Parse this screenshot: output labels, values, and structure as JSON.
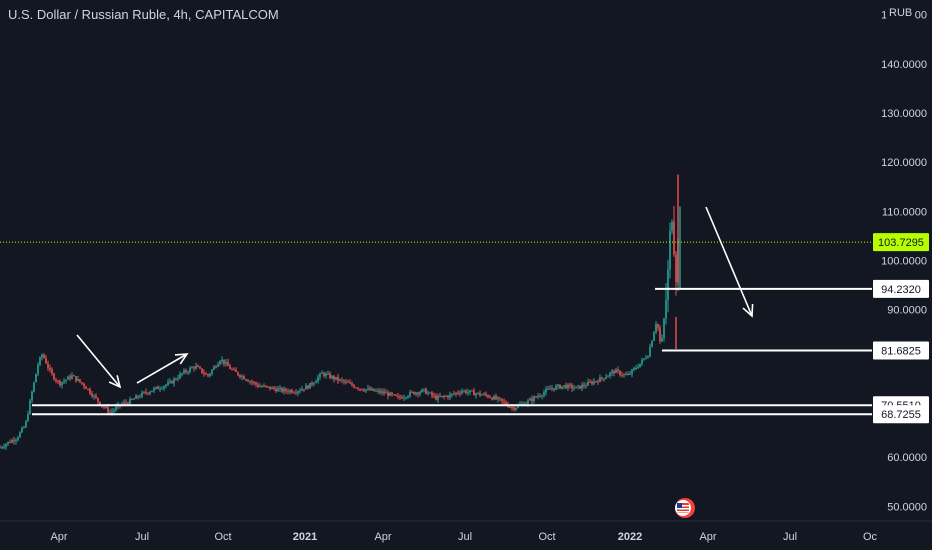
{
  "header": {
    "title": "U.S. Dollar / Russian Ruble, 4h, CAPITALCOM",
    "currency": "RUB"
  },
  "colors": {
    "background": "#131722",
    "up": "#26a69a",
    "down": "#ef5350",
    "text": "#d1d4dc",
    "drawing": "#ffffff",
    "current_price": "#b6ff00"
  },
  "chart_data": {
    "type": "candlestick",
    "symbol": "USDRUB",
    "timeframe": "4h",
    "source": "CAPITALCOM",
    "y_ticks": [
      "150.0000",
      "140.0000",
      "130.0000",
      "120.0000",
      "110.0000",
      "100.0000",
      "90.0000",
      "60.0000",
      "50.0000"
    ],
    "ylim": [
      47,
      153
    ],
    "x_ticks": [
      {
        "label": "Apr",
        "bold": false
      },
      {
        "label": "Jul",
        "bold": false
      },
      {
        "label": "Oct",
        "bold": false
      },
      {
        "label": "2021",
        "bold": true
      },
      {
        "label": "Apr",
        "bold": false
      },
      {
        "label": "Jul",
        "bold": false
      },
      {
        "label": "Oct",
        "bold": false
      },
      {
        "label": "2022",
        "bold": true
      },
      {
        "label": "Apr",
        "bold": false
      },
      {
        "label": "Jul",
        "bold": false
      },
      {
        "label": "Oc",
        "bold": false
      }
    ],
    "current_price": {
      "value": 103.7295,
      "label": "103.7295"
    },
    "levels": [
      {
        "value": 94.232,
        "label": "94.2320"
      },
      {
        "value": 81.6825,
        "label": "81.6825"
      },
      {
        "value": 70.551,
        "label": "70.5510"
      },
      {
        "value": 68.7255,
        "label": "68.7255"
      }
    ],
    "price_path": [
      {
        "t": 0.0,
        "p": 62.0
      },
      {
        "t": 0.04,
        "p": 64.0
      },
      {
        "t": 0.06,
        "p": 66.5
      },
      {
        "t": 0.075,
        "p": 73.0
      },
      {
        "t": 0.09,
        "p": 79.0
      },
      {
        "t": 0.1,
        "p": 81.0
      },
      {
        "t": 0.12,
        "p": 77.0
      },
      {
        "t": 0.14,
        "p": 75.0
      },
      {
        "t": 0.17,
        "p": 76.5
      },
      {
        "t": 0.2,
        "p": 74.5
      },
      {
        "t": 0.23,
        "p": 71.5
      },
      {
        "t": 0.26,
        "p": 69.0
      },
      {
        "t": 0.28,
        "p": 70.5
      },
      {
        "t": 0.31,
        "p": 71.5
      },
      {
        "t": 0.34,
        "p": 73.0
      },
      {
        "t": 0.37,
        "p": 74.0
      },
      {
        "t": 0.4,
        "p": 75.0
      },
      {
        "t": 0.43,
        "p": 77.0
      },
      {
        "t": 0.46,
        "p": 78.5
      },
      {
        "t": 0.49,
        "p": 76.5
      },
      {
        "t": 0.52,
        "p": 80.0
      },
      {
        "t": 0.55,
        "p": 77.5
      },
      {
        "t": 0.58,
        "p": 76.0
      },
      {
        "t": 0.61,
        "p": 74.5
      },
      {
        "t": 0.64,
        "p": 74.0
      },
      {
        "t": 0.67,
        "p": 73.5
      },
      {
        "t": 0.7,
        "p": 73.5
      },
      {
        "t": 0.73,
        "p": 74.5
      },
      {
        "t": 0.76,
        "p": 77.0
      },
      {
        "t": 0.79,
        "p": 76.0
      },
      {
        "t": 0.82,
        "p": 75.0
      },
      {
        "t": 0.85,
        "p": 74.0
      },
      {
        "t": 0.88,
        "p": 73.5
      },
      {
        "t": 0.91,
        "p": 73.0
      },
      {
        "t": 0.94,
        "p": 72.0
      },
      {
        "t": 0.97,
        "p": 73.0
      },
      {
        "t": 1.0,
        "p": 73.5
      },
      {
        "t": 1.03,
        "p": 72.0
      },
      {
        "t": 1.06,
        "p": 72.5
      },
      {
        "t": 1.09,
        "p": 73.5
      },
      {
        "t": 1.12,
        "p": 73.0
      },
      {
        "t": 1.15,
        "p": 72.5
      },
      {
        "t": 1.18,
        "p": 71.5
      },
      {
        "t": 1.21,
        "p": 70.0
      },
      {
        "t": 1.24,
        "p": 71.0
      },
      {
        "t": 1.27,
        "p": 72.5
      },
      {
        "t": 1.3,
        "p": 74.0
      },
      {
        "t": 1.33,
        "p": 74.5
      },
      {
        "t": 1.36,
        "p": 74.0
      },
      {
        "t": 1.39,
        "p": 75.0
      },
      {
        "t": 1.42,
        "p": 76.0
      },
      {
        "t": 1.45,
        "p": 77.5
      },
      {
        "t": 1.48,
        "p": 76.5
      },
      {
        "t": 1.51,
        "p": 79.0
      },
      {
        "t": 1.53,
        "p": 81.0
      },
      {
        "t": 1.55,
        "p": 88.0
      },
      {
        "t": 1.56,
        "p": 82.0
      },
      {
        "t": 1.575,
        "p": 95.0
      },
      {
        "t": 1.585,
        "p": 111.0
      },
      {
        "t": 1.595,
        "p": 97.0
      },
      {
        "t": 1.6,
        "p": 103.7
      }
    ],
    "annotations": [
      {
        "name": "arrow-down-apr",
        "kind": "arrow",
        "color": "#ffffff"
      },
      {
        "name": "arrow-up-jul",
        "kind": "arrow",
        "color": "#ffffff"
      },
      {
        "name": "arrow-down-2022",
        "kind": "arrow",
        "color": "#ffffff"
      }
    ]
  },
  "overlay": {
    "flag_icon": "us-flag-icon"
  }
}
